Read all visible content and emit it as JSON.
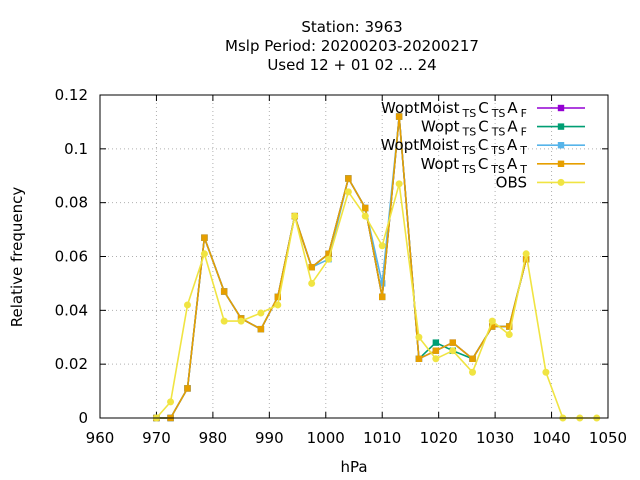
{
  "chart_data": {
    "type": "line",
    "title_lines": [
      "Station:     3963",
      "Mslp  Period: 20200203-20200217",
      "Used  12 + 01 02 ... 24"
    ],
    "xlabel": "hPa",
    "ylabel": "Relative frequency",
    "xlim": [
      960,
      1050
    ],
    "ylim": [
      0,
      0.12
    ],
    "x_ticks": [
      960,
      970,
      980,
      990,
      1000,
      1010,
      1020,
      1030,
      1040,
      1050
    ],
    "y_ticks": [
      0,
      0.02,
      0.04,
      0.06,
      0.08,
      0.1,
      0.12
    ],
    "x_tick_labels": [
      "960",
      "970",
      "980",
      "990",
      "1000",
      "1010",
      "1020",
      "1030",
      "1040",
      "1050"
    ],
    "y_tick_labels": [
      "0",
      "0.02",
      "0.04",
      "0.06",
      "0.08",
      "0.1",
      "0.12"
    ],
    "grid": true,
    "legend_position": "top-right",
    "series": [
      {
        "legend": {
          "main": "WoptMoist",
          "s1": "TS",
          "c": "C",
          "s2": "TS",
          "a": "A",
          "s3": "F"
        },
        "color": "#9400d3",
        "marker": "square",
        "x": [
          970,
          972.5,
          975.5,
          978.5,
          982,
          985,
          988.5,
          991.5,
          994.5,
          997.5,
          1000.5,
          1004,
          1007,
          1010,
          1013,
          1016.5,
          1019.5,
          1022.5,
          1026,
          1029.5,
          1032.5,
          1035.5
        ],
        "y": [
          0,
          0,
          0.011,
          0.067,
          0.047,
          0.037,
          0.033,
          0.045,
          0.075,
          0.056,
          0.061,
          0.089,
          0.078,
          0.045,
          0.112,
          0.022,
          0.025,
          0.028,
          0.022,
          0.034,
          0.034,
          0.059
        ]
      },
      {
        "legend": {
          "main": "Wopt",
          "s1": "TS",
          "c": "C",
          "s2": "TS",
          "a": "A",
          "s3": "F"
        },
        "color": "#009e73",
        "marker": "square",
        "x": [
          970,
          972.5,
          975.5,
          978.5,
          982,
          985,
          988.5,
          991.5,
          994.5,
          997.5,
          1000.5,
          1004,
          1007,
          1010,
          1013,
          1016.5,
          1019.5,
          1022.5,
          1026,
          1029.5,
          1032.5,
          1035.5
        ],
        "y": [
          0,
          0,
          0.011,
          0.067,
          0.047,
          0.037,
          0.033,
          0.045,
          0.075,
          0.056,
          0.061,
          0.089,
          0.078,
          0.045,
          0.112,
          0.022,
          0.028,
          0.025,
          0.022,
          0.034,
          0.034,
          0.059
        ]
      },
      {
        "legend": {
          "main": "WoptMoist",
          "s1": "TS",
          "c": "C",
          "s2": "TS",
          "a": "A",
          "s3": "T"
        },
        "color": "#56b4e9",
        "marker": "square",
        "x": [
          970,
          972.5,
          975.5,
          978.5,
          982,
          985,
          988.5,
          991.5,
          994.5,
          997.5,
          1000.5,
          1004,
          1007,
          1010,
          1013,
          1016.5,
          1019.5,
          1022.5,
          1026,
          1029.5,
          1032.5,
          1035.5
        ],
        "y": [
          0,
          0,
          0.011,
          0.067,
          0.047,
          0.037,
          0.033,
          0.045,
          0.075,
          0.056,
          0.059,
          0.089,
          0.078,
          0.05,
          0.112,
          0.022,
          0.025,
          0.028,
          0.022,
          0.034,
          0.034,
          0.059
        ]
      },
      {
        "legend": {
          "main": "Wopt",
          "s1": "TS",
          "c": "C",
          "s2": "TS",
          "a": "A",
          "s3": "T"
        },
        "color": "#e69f00",
        "marker": "square",
        "x": [
          970,
          972.5,
          975.5,
          978.5,
          982,
          985,
          988.5,
          991.5,
          994.5,
          997.5,
          1000.5,
          1004,
          1007,
          1010,
          1013,
          1016.5,
          1019.5,
          1022.5,
          1026,
          1029.5,
          1032.5,
          1035.5
        ],
        "y": [
          0,
          0,
          0.011,
          0.067,
          0.047,
          0.037,
          0.033,
          0.045,
          0.075,
          0.056,
          0.061,
          0.089,
          0.078,
          0.045,
          0.112,
          0.022,
          0.025,
          0.028,
          0.022,
          0.034,
          0.034,
          0.059
        ]
      },
      {
        "legend": {
          "main": "OBS",
          "s1": "",
          "c": "",
          "s2": "",
          "a": "",
          "s3": ""
        },
        "color": "#f0e442",
        "marker": "circle",
        "x": [
          970,
          972.5,
          975.5,
          978.5,
          982,
          985,
          988.5,
          991.5,
          994.5,
          997.5,
          1000.5,
          1004,
          1007,
          1010,
          1013,
          1016.5,
          1019.5,
          1022.5,
          1026,
          1029.5,
          1032.5,
          1035.5,
          1039,
          1042,
          1045,
          1048
        ],
        "y": [
          0,
          0.006,
          0.042,
          0.061,
          0.036,
          0.036,
          0.039,
          0.042,
          0.075,
          0.05,
          0.059,
          0.084,
          0.075,
          0.064,
          0.087,
          0.03,
          0.022,
          0.025,
          0.017,
          0.036,
          0.031,
          0.061,
          0.017,
          0,
          0,
          0
        ]
      }
    ]
  }
}
